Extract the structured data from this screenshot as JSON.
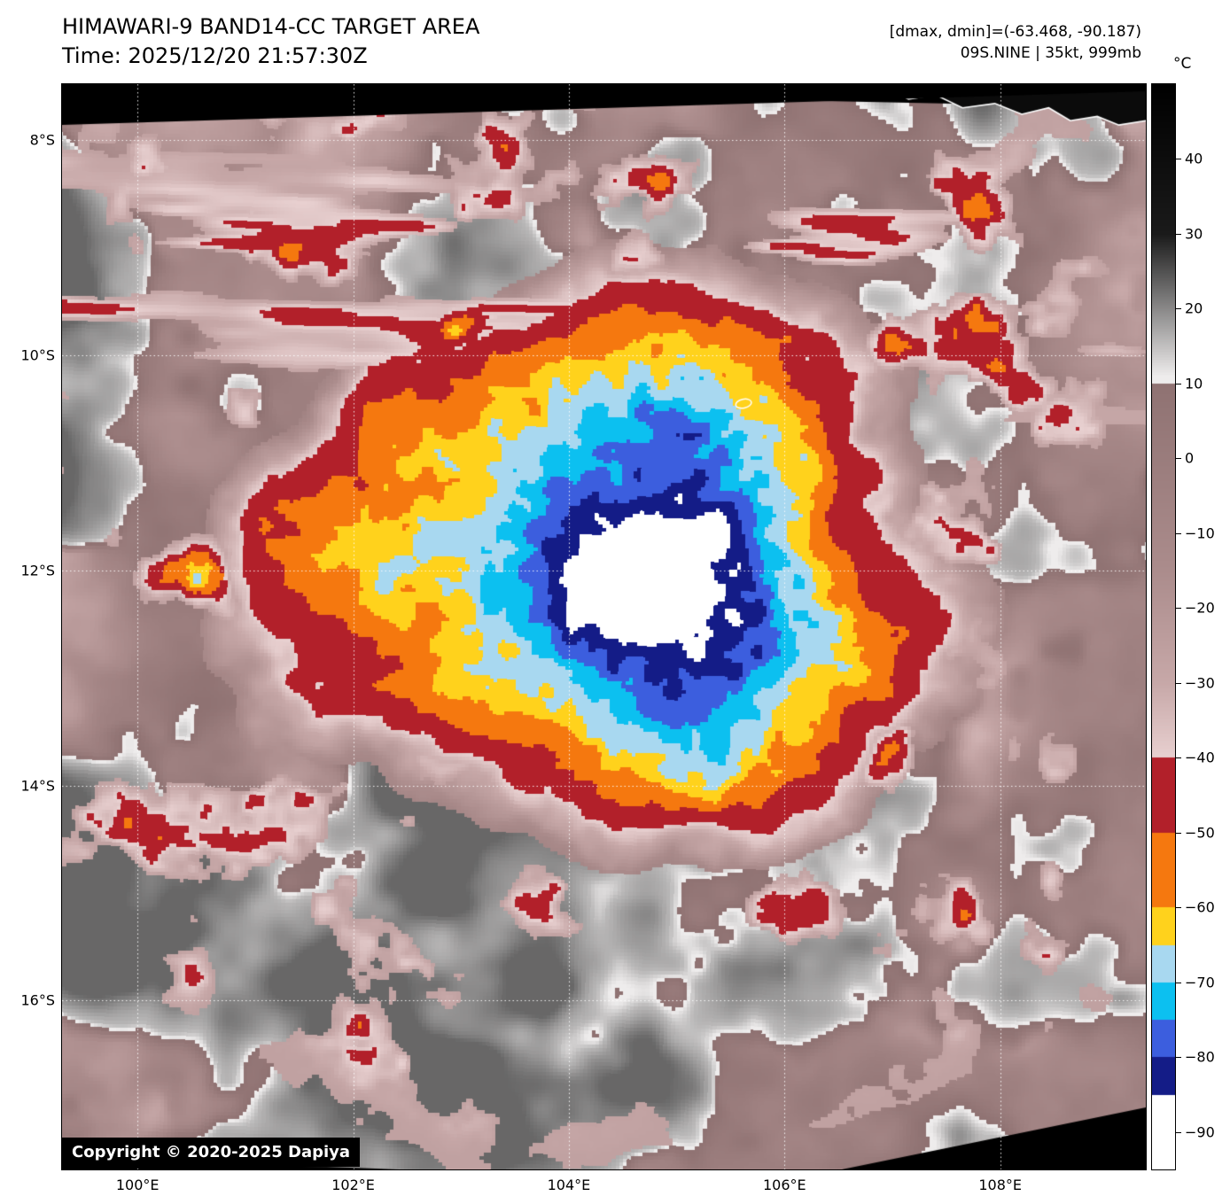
{
  "header": {
    "title": "HIMAWARI-9 BAND14-CC TARGET AREA",
    "time": "Time: 2025/12/20 21:57:30Z",
    "dmax_dmin": "[dmax, dmin]=(-63.468, -90.187)",
    "storm_info": "09S.NINE | 35kt, 999mb"
  },
  "copyright": "Copyright © 2020-2025 Dapiya",
  "colorbar": {
    "unit": "°C",
    "max": 50,
    "min": -95,
    "ticks": [
      {
        "value": 40,
        "label": "40"
      },
      {
        "value": 30,
        "label": "30"
      },
      {
        "value": 20,
        "label": "20"
      },
      {
        "value": 10,
        "label": "10"
      },
      {
        "value": 0,
        "label": "0"
      },
      {
        "value": -10,
        "label": "−10"
      },
      {
        "value": -20,
        "label": "−20"
      },
      {
        "value": -30,
        "label": "−30"
      },
      {
        "value": -40,
        "label": "−40"
      },
      {
        "value": -50,
        "label": "−50"
      },
      {
        "value": -60,
        "label": "−60"
      },
      {
        "value": -70,
        "label": "−70"
      },
      {
        "value": -80,
        "label": "−80"
      },
      {
        "value": -90,
        "label": "−90"
      }
    ],
    "stops": [
      {
        "t": 50,
        "c": "#000000",
        "i": 1
      },
      {
        "t": 30,
        "c": "#1a1a1a",
        "i": 1
      },
      {
        "t": 11,
        "c": "#eeecec",
        "i": 0
      },
      {
        "t": 10,
        "c": "#8f7272",
        "i": 1
      },
      {
        "t": -15,
        "c": "#ab8c8c",
        "i": 1
      },
      {
        "t": -30,
        "c": "#c7a8a8",
        "i": 1
      },
      {
        "t": -40,
        "c": "#e8d0d0",
        "i": 0
      },
      {
        "t": -40,
        "c": "#b2202a",
        "i": 0
      },
      {
        "t": -50,
        "c": "#f5780f",
        "i": 0
      },
      {
        "t": -60,
        "c": "#ffd21c",
        "i": 0
      },
      {
        "t": -65,
        "c": "#a8d8f0",
        "i": 0
      },
      {
        "t": -70,
        "c": "#0cc0f0",
        "i": 0
      },
      {
        "t": -75,
        "c": "#3c5ede",
        "i": 0
      },
      {
        "t": -80,
        "c": "#141c87",
        "i": 0
      },
      {
        "t": -85,
        "c": "#ffffff",
        "i": 0
      },
      {
        "t": -95,
        "c": "#ffffff",
        "i": 0
      }
    ]
  },
  "axes": {
    "lon_min": 99.3,
    "lon_max": 109.35,
    "lat_top": 7.48,
    "lat_bottom": 17.57,
    "x_ticks": [
      {
        "value": 100,
        "label": "100°E"
      },
      {
        "value": 102,
        "label": "102°E"
      },
      {
        "value": 104,
        "label": "104°E"
      },
      {
        "value": 106,
        "label": "106°E"
      },
      {
        "value": 108,
        "label": "108°E"
      }
    ],
    "y_ticks": [
      {
        "value": 8,
        "label": "8°S"
      },
      {
        "value": 10,
        "label": "10°S"
      },
      {
        "value": 12,
        "label": "12°S"
      },
      {
        "value": 14,
        "label": "14°S"
      },
      {
        "value": 16,
        "label": "16°S"
      }
    ]
  },
  "map": {
    "seed": 20251220,
    "storm": {
      "center_lon": 104.45,
      "center_lat": 11.85,
      "radius_x_deg": 2.8,
      "radius_y_deg": 2.2
    },
    "christmas_island": {
      "lon": 105.62,
      "lat": 10.45
    },
    "java_coast_lonlat": [
      [
        106.9,
        7.5
      ],
      [
        107.15,
        7.62
      ],
      [
        107.4,
        7.58
      ],
      [
        107.65,
        7.7
      ],
      [
        107.95,
        7.66
      ],
      [
        108.2,
        7.76
      ],
      [
        108.45,
        7.7
      ],
      [
        108.65,
        7.82
      ],
      [
        108.9,
        7.78
      ],
      [
        109.1,
        7.86
      ],
      [
        109.35,
        7.82
      ]
    ]
  }
}
